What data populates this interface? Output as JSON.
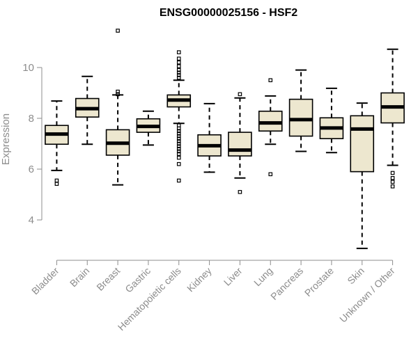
{
  "chart_data": {
    "type": "boxplot",
    "title": "ENSG00000025156 - HSF2",
    "ylabel": "Expression",
    "xlabel": "",
    "yticks": [
      4,
      6,
      8,
      10
    ],
    "ylim": [
      2.6,
      11.8
    ],
    "colors": {
      "box_fill": "#ede7cf",
      "stroke": "#000000",
      "axis": "#8c8c8c"
    },
    "categories": [
      "Bladder",
      "Brain",
      "Breast",
      "Gastric",
      "Hematopoietic cells",
      "Kidney",
      "Liver",
      "Lung",
      "Pancreas",
      "Prostate",
      "Skin",
      "Unknown / Other"
    ],
    "boxes": [
      {
        "q1": 6.98,
        "median": 7.38,
        "q3": 7.72,
        "whisker_low": 5.95,
        "whisker_high": 8.68,
        "outliers": [
          5.55,
          5.42
        ]
      },
      {
        "q1": 8.05,
        "median": 8.38,
        "q3": 8.78,
        "whisker_low": 6.98,
        "whisker_high": 9.65,
        "outliers": []
      },
      {
        "q1": 6.55,
        "median": 7.02,
        "q3": 7.55,
        "whisker_low": 5.38,
        "whisker_high": 8.92,
        "outliers": [
          9.05,
          8.95,
          11.45
        ]
      },
      {
        "q1": 7.45,
        "median": 7.68,
        "q3": 7.98,
        "whisker_low": 6.95,
        "whisker_high": 8.28,
        "outliers": []
      },
      {
        "q1": 8.45,
        "median": 8.72,
        "q3": 8.92,
        "whisker_low": 7.8,
        "whisker_high": 9.5,
        "outliers": [
          10.6,
          10.35,
          10.2,
          10.05,
          9.9,
          9.8,
          9.7,
          9.6,
          7.72,
          7.6,
          7.5,
          7.4,
          7.3,
          7.2,
          7.1,
          7.0,
          6.9,
          6.8,
          6.7,
          6.6,
          6.45,
          6.2,
          5.55
        ]
      },
      {
        "q1": 6.52,
        "median": 6.92,
        "q3": 7.35,
        "whisker_low": 5.88,
        "whisker_high": 8.58,
        "outliers": []
      },
      {
        "q1": 6.52,
        "median": 6.75,
        "q3": 7.45,
        "whisker_low": 5.65,
        "whisker_high": 8.8,
        "outliers": [
          8.95,
          5.1
        ]
      },
      {
        "q1": 7.5,
        "median": 7.82,
        "q3": 8.28,
        "whisker_low": 6.98,
        "whisker_high": 8.88,
        "outliers": [
          9.5,
          5.8
        ]
      },
      {
        "q1": 7.3,
        "median": 7.95,
        "q3": 8.75,
        "whisker_low": 6.7,
        "whisker_high": 9.9,
        "outliers": []
      },
      {
        "q1": 7.2,
        "median": 7.62,
        "q3": 8.02,
        "whisker_low": 6.65,
        "whisker_high": 9.18,
        "outliers": []
      },
      {
        "q1": 5.9,
        "median": 7.58,
        "q3": 8.1,
        "whisker_low": 2.88,
        "whisker_high": 8.6,
        "outliers": []
      },
      {
        "q1": 7.82,
        "median": 8.45,
        "q3": 9.0,
        "whisker_low": 6.15,
        "whisker_high": 10.72,
        "outliers": [
          5.85,
          5.65,
          5.5,
          5.32
        ]
      }
    ]
  }
}
